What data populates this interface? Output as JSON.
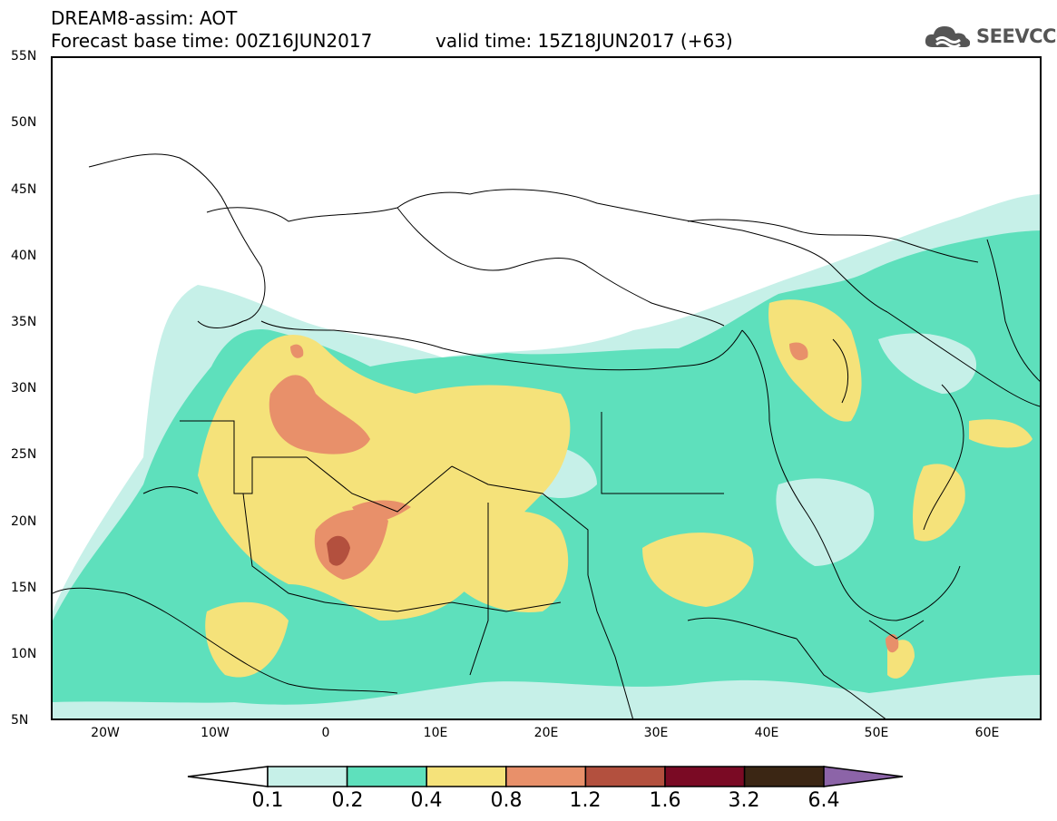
{
  "header": {
    "title_line1": "DREAM8-assim: AOT",
    "title_line2": "Forecast base time: 00Z16JUN2017",
    "valid_time": "valid time: 15Z18JUN2017 (+63)",
    "logo_text": "SEEVCCC",
    "logo_icon": "cloud-icon"
  },
  "map": {
    "lat_labels": [
      "55N",
      "50N",
      "45N",
      "40N",
      "35N",
      "30N",
      "25N",
      "20N",
      "15N",
      "10N",
      "5N"
    ],
    "lon_labels": [
      "20W",
      "10W",
      "0",
      "10E",
      "20E",
      "30E",
      "40E",
      "50E",
      "60E"
    ],
    "lat_range": [
      5,
      55
    ],
    "lon_range": [
      -25,
      65
    ]
  },
  "colorbar": {
    "labels": [
      "0.1",
      "0.2",
      "0.4",
      "0.8",
      "1.2",
      "1.6",
      "3.2",
      "6.4"
    ],
    "colors": [
      "#c6f0e8",
      "#5ee0bc",
      "#f5e27a",
      "#e8906a",
      "#b3503e",
      "#7a0a24",
      "#3b2614",
      "#8c64a8"
    ],
    "under_color": "#ffffff"
  },
  "colors": {
    "aot_0_1": "#c6f0e8",
    "aot_0_2": "#5ee0bc",
    "aot_0_4": "#f5e27a",
    "aot_0_8": "#e8906a",
    "aot_1_2": "#b3503e"
  }
}
